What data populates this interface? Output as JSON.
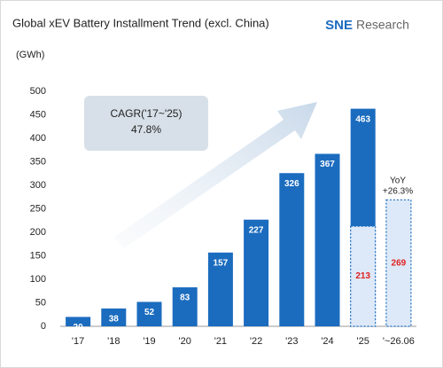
{
  "chart_data": {
    "type": "bar",
    "title": "Global xEV Battery Installment Trend (excl. China)",
    "logo_brand": "SNE",
    "logo_text": "Research",
    "y_label": "(GWh)",
    "categories": [
      "'17",
      "'18",
      "'19",
      "'20",
      "'21",
      "'22",
      "'23",
      "'24",
      "'25",
      "'~26.06"
    ],
    "series": [
      {
        "color": "#1b6cbf",
        "label_color": "#ffffff",
        "values": [
          20,
          38,
          52,
          83,
          157,
          227,
          326,
          367,
          463,
          null
        ]
      },
      {
        "color": "#dde9f8",
        "label_color": "#e02020",
        "dashed": true,
        "values": [
          null,
          null,
          null,
          null,
          null,
          null,
          null,
          null,
          213,
          269
        ]
      }
    ],
    "ylim": [
      0,
      500
    ],
    "yticks": [
      0,
      50,
      100,
      150,
      200,
      250,
      300,
      350,
      400,
      450,
      500
    ],
    "grid": false,
    "annotations": {
      "cagr_label": "CAGR('17~'25)",
      "cagr_value": "47.8%",
      "yoy_label": "YoY",
      "yoy_value": "+26.3%"
    }
  }
}
